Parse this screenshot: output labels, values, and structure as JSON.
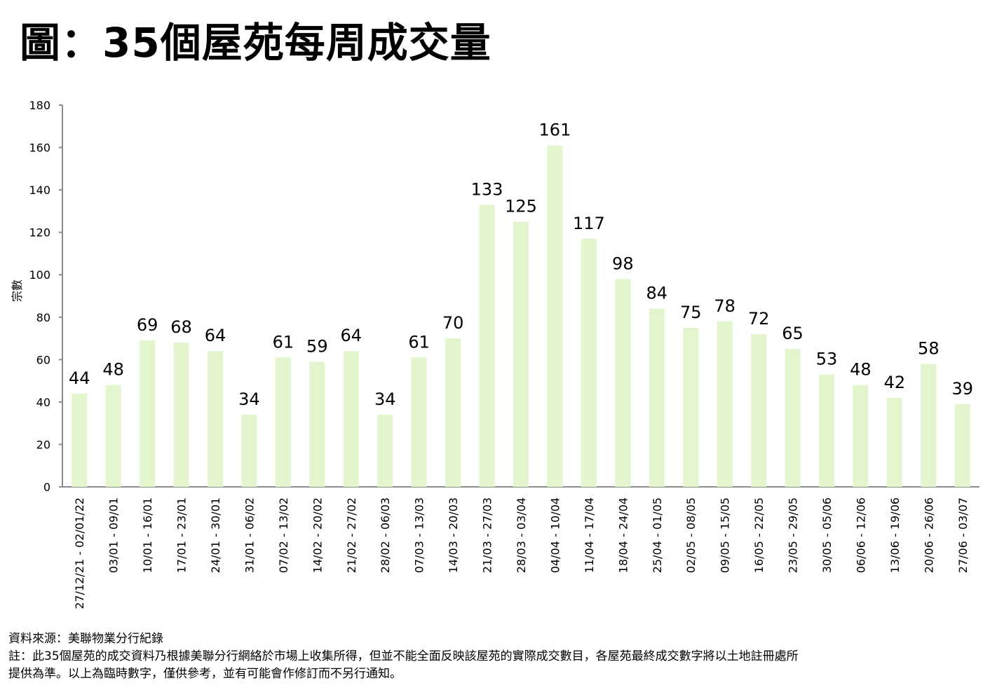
{
  "chart_data": {
    "type": "bar",
    "title": "圖：35個屋苑每周成交量",
    "ylabel": "宗數",
    "xlabel": "",
    "ylim": [
      0,
      180
    ],
    "yticks": [
      0,
      20,
      40,
      60,
      80,
      100,
      120,
      140,
      160,
      180
    ],
    "grid": false,
    "bar_color": "#e2f5cc",
    "categories": [
      "27/12/21 - 02/01/22",
      "03/01 - 09/01",
      "10/01 - 16/01",
      "17/01 - 23/01",
      "24/01 - 30/01",
      "31/01 - 06/02",
      "07/02 - 13/02",
      "14/02 - 20/02",
      "21/02 - 27/02",
      "28/02 - 06/03",
      "07/03 - 13/03",
      "14/03 - 20/03",
      "21/03 - 27/03",
      "28/03 - 03/04",
      "04/04 - 10/04",
      "11/04 - 17/04",
      "18/04 - 24/04",
      "25/04 - 01/05",
      "02/05 - 08/05",
      "09/05 - 15/05",
      "16/05 - 22/05",
      "23/05 - 29/05",
      "30/05 - 05/06",
      "06/06 - 12/06",
      "13/06 - 19/06",
      "20/06 - 26/06",
      "27/06 - 03/07"
    ],
    "values": [
      44,
      48,
      69,
      68,
      64,
      34,
      61,
      59,
      64,
      34,
      61,
      70,
      133,
      125,
      161,
      117,
      98,
      84,
      75,
      78,
      72,
      65,
      53,
      48,
      42,
      58,
      39
    ]
  },
  "footer": {
    "source": "資料來源：美聯物業分行紀錄",
    "note_line1": "註：此35個屋苑的成交資料乃根據美聯分行網絡於市場上收集所得，但並不能全面反映該屋苑的實際成交數目，各屋苑最終成交數字將以土地註冊處所",
    "note_line2": "提供為準。以上為臨時數字，僅供參考，並有可能會作修訂而不另行通知。"
  }
}
